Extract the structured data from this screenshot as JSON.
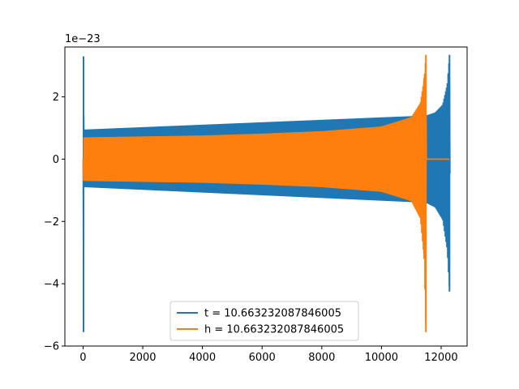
{
  "chart_data": {
    "type": "line",
    "title": "",
    "xlabel": "",
    "ylabel": "",
    "y_scale_label": "1e−23",
    "xlim": [
      -610,
      12870
    ],
    "ylim": [
      -6.0,
      3.6
    ],
    "x_ticks": [
      0,
      2000,
      4000,
      6000,
      8000,
      10000,
      12000
    ],
    "x_tick_labels": [
      "0",
      "2000",
      "4000",
      "6000",
      "8000",
      "10000",
      "12000"
    ],
    "y_ticks": [
      -6,
      -4,
      -2,
      0,
      2
    ],
    "y_tick_labels": [
      "−6",
      "−4",
      "−2",
      "0",
      "2"
    ],
    "grid": false,
    "legend_position": "lower center",
    "series": [
      {
        "name": "t = 10.663232087846005",
        "color": "#1f77b4",
        "envelope": [
          {
            "x": 0,
            "upper": 0.0,
            "lower": 0.0
          },
          {
            "x": 15,
            "upper": 3.3,
            "lower": -5.55
          },
          {
            "x": 30,
            "upper": 0.95,
            "lower": -0.9
          },
          {
            "x": 11490,
            "upper": 1.4,
            "lower": -1.4
          },
          {
            "x": 11800,
            "upper": 1.5,
            "lower": -1.55
          },
          {
            "x": 12050,
            "upper": 1.75,
            "lower": -1.95
          },
          {
            "x": 12200,
            "upper": 2.4,
            "lower": -2.9
          },
          {
            "x": 12280,
            "upper": 3.35,
            "lower": -4.25
          },
          {
            "x": 12300,
            "upper": 0.0,
            "lower": 0.0
          }
        ]
      },
      {
        "name": "h = 10.663232087846005",
        "color": "#ff7f0e",
        "envelope": [
          {
            "x": 0,
            "upper": 0.7,
            "lower": -0.7
          },
          {
            "x": 2000,
            "upper": 0.73,
            "lower": -0.73
          },
          {
            "x": 4000,
            "upper": 0.76,
            "lower": -0.76
          },
          {
            "x": 6000,
            "upper": 0.82,
            "lower": -0.82
          },
          {
            "x": 8000,
            "upper": 0.9,
            "lower": -0.9
          },
          {
            "x": 10000,
            "upper": 1.05,
            "lower": -1.05
          },
          {
            "x": 11000,
            "upper": 1.35,
            "lower": -1.35
          },
          {
            "x": 11300,
            "upper": 1.8,
            "lower": -1.9
          },
          {
            "x": 11430,
            "upper": 2.6,
            "lower": -3.2
          },
          {
            "x": 11490,
            "upper": 3.35,
            "lower": -5.55
          },
          {
            "x": 11500,
            "upper": 0.0,
            "lower": 0.0
          },
          {
            "x": 12280,
            "upper": 0.0,
            "lower": 0.0
          }
        ]
      }
    ]
  }
}
